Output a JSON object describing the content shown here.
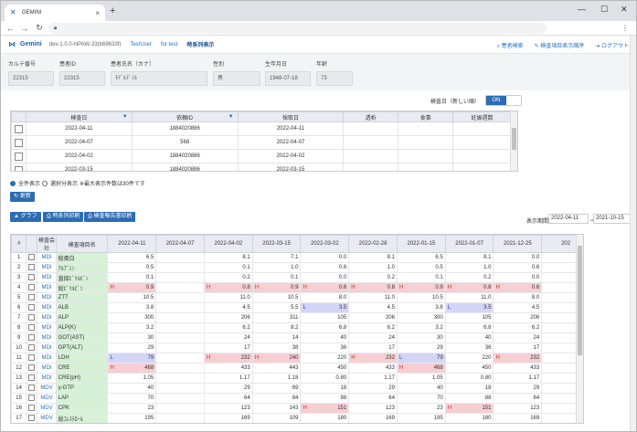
{
  "browser": {
    "tab_title": "GEMINI",
    "url": ""
  },
  "header": {
    "logo": "Gemini",
    "version": "dev-1.0.0-NPAW-33(b69633f)",
    "user": "TestUser",
    "org": "for test",
    "view": "時系列表示",
    "links": [
      "患者検索",
      "検査項目表示順序",
      "ログアウト"
    ]
  },
  "patient": {
    "fields": [
      {
        "label": "カルテ番号",
        "value": "22315"
      },
      {
        "label": "患者ID",
        "value": "22315"
      },
      {
        "label": "患者氏名（カナ）",
        "value": "ﾓﾃﾞﾙﾃﾞﾐﾙ"
      },
      {
        "label": "性別",
        "value": "男"
      },
      {
        "label": "生年月日",
        "value": "1948-07-18"
      },
      {
        "label": "年齢",
        "value": "73"
      }
    ]
  },
  "toggle": {
    "label": "検査日（新しい順）",
    "state": "ON"
  },
  "visits": {
    "headers": [
      "",
      "検査日",
      "依頼ID",
      "採取日",
      "透析",
      "食事",
      "妊娠週数"
    ],
    "rows": [
      [
        "2022-04-11",
        "1884020886",
        "2022-04-11",
        "",
        "",
        ""
      ],
      [
        "2022-04-07",
        "568",
        "2022-04-07",
        "",
        "",
        ""
      ],
      [
        "2022-04-02",
        "1884020886",
        "2022-04-02",
        "",
        "",
        ""
      ],
      [
        "2022-03-15",
        "1884020886",
        "2022-03-15",
        "",
        "",
        ""
      ]
    ]
  },
  "radios": {
    "all": "全件表示",
    "some": "選択分表示",
    "note": "※最大表示件数は30件です"
  },
  "buttons": {
    "refresh": "更新",
    "graph": "グラフ",
    "print_series": "時系列印刷",
    "print_report": "検査報告書印刷"
  },
  "period": {
    "label": "表示期間",
    "from": "2022-04-11",
    "sep": "〜",
    "to": "2021-10-15"
  },
  "results": {
    "headers": [
      "#",
      "",
      "検査会社",
      "検査項目名",
      "2022-04-11",
      "2022-04-07",
      "2022-04-02",
      "2022-03-15",
      "2022-03-02",
      "2022-02-28",
      "2022-01-15",
      "2022-01-07",
      "2021-12-25",
      "202"
    ],
    "rows": [
      {
        "n": "1",
        "fac": "MDI",
        "name": "総蛋白",
        "v": [
          [
            "",
            "6.5"
          ],
          [
            "",
            ""
          ],
          [
            "",
            "8.1"
          ],
          [
            "",
            "7.1"
          ],
          [
            "",
            "0.0"
          ],
          [
            "",
            "8.1"
          ],
          [
            "",
            "6.5"
          ],
          [
            "",
            "8.1"
          ],
          [
            "",
            "0.0"
          ]
        ]
      },
      {
        "n": "2",
        "fac": "MDI",
        "name": "ｱﾙﾌﾞﾐﾝ",
        "v": [
          [
            "",
            "0.5"
          ],
          [
            "",
            ""
          ],
          [
            "",
            "0.1"
          ],
          [
            "",
            "1.0"
          ],
          [
            "",
            "0.6"
          ],
          [
            "",
            "1.0"
          ],
          [
            "",
            "0.5"
          ],
          [
            "",
            "1.0"
          ],
          [
            "",
            "0.6"
          ]
        ]
      },
      {
        "n": "3",
        "fac": "MDI",
        "name": "直接ﾋﾞﾘﾙﾋﾞﾝ",
        "v": [
          [
            "",
            "0.1"
          ],
          [
            "",
            ""
          ],
          [
            "",
            "0.2"
          ],
          [
            "",
            "0.1"
          ],
          [
            "",
            "0.0"
          ],
          [
            "",
            "0.2"
          ],
          [
            "",
            "0.1"
          ],
          [
            "",
            "0.2"
          ],
          [
            "",
            "0.0"
          ]
        ]
      },
      {
        "n": "4",
        "fac": "MDI",
        "name": "総ﾋﾞﾘﾙﾋﾞﾝ",
        "v": [
          [
            "H",
            "0.9"
          ],
          [
            "",
            ""
          ],
          [
            "H",
            "0.8"
          ],
          [
            "H",
            "0.9"
          ],
          [
            "H",
            "0.6"
          ],
          [
            "H",
            "0.8"
          ],
          [
            "H",
            "0.9"
          ],
          [
            "H",
            "0.8"
          ],
          [
            "H",
            "0.6"
          ]
        ]
      },
      {
        "n": "5",
        "fac": "MDI",
        "name": "ZTT",
        "v": [
          [
            "",
            "10.5"
          ],
          [
            "",
            ""
          ],
          [
            "",
            "11.0"
          ],
          [
            "",
            "10.5"
          ],
          [
            "",
            "8.0"
          ],
          [
            "",
            "11.0"
          ],
          [
            "",
            "10.5"
          ],
          [
            "",
            "11.0"
          ],
          [
            "",
            "8.0"
          ]
        ]
      },
      {
        "n": "6",
        "fac": "MDI",
        "name": "ALB",
        "v": [
          [
            "",
            "3.8"
          ],
          [
            "",
            ""
          ],
          [
            "",
            "4.5"
          ],
          [
            "",
            "5.5"
          ],
          [
            "L",
            "3.5"
          ],
          [
            "",
            "4.5"
          ],
          [
            "",
            "3.8"
          ],
          [
            "L",
            "3.5"
          ],
          [
            "",
            "4.5"
          ]
        ]
      },
      {
        "n": "7",
        "fac": "MDI",
        "name": "ALP",
        "v": [
          [
            "",
            "300"
          ],
          [
            "",
            ""
          ],
          [
            "",
            "206"
          ],
          [
            "",
            "311"
          ],
          [
            "",
            "105"
          ],
          [
            "",
            "206"
          ],
          [
            "",
            "300"
          ],
          [
            "",
            "105"
          ],
          [
            "",
            "206"
          ]
        ]
      },
      {
        "n": "8",
        "fac": "MDI",
        "name": "ALP(K)",
        "v": [
          [
            "",
            "3.2"
          ],
          [
            "",
            ""
          ],
          [
            "",
            "6.2"
          ],
          [
            "",
            "8.2"
          ],
          [
            "",
            "6.8"
          ],
          [
            "",
            "6.2"
          ],
          [
            "",
            "3.2"
          ],
          [
            "",
            "6.8"
          ],
          [
            "",
            "6.2"
          ]
        ]
      },
      {
        "n": "9",
        "fac": "MDI",
        "name": "GOT(AST)",
        "v": [
          [
            "",
            "30"
          ],
          [
            "",
            ""
          ],
          [
            "",
            "24"
          ],
          [
            "",
            "14"
          ],
          [
            "",
            "40"
          ],
          [
            "",
            "24"
          ],
          [
            "",
            "30"
          ],
          [
            "",
            "40"
          ],
          [
            "",
            "24"
          ]
        ]
      },
      {
        "n": "10",
        "fac": "MDI",
        "name": "GPT(ALT)",
        "v": [
          [
            "",
            "29"
          ],
          [
            "",
            ""
          ],
          [
            "",
            "17"
          ],
          [
            "",
            "38"
          ],
          [
            "",
            "36"
          ],
          [
            "",
            "17"
          ],
          [
            "",
            "29"
          ],
          [
            "",
            "36"
          ],
          [
            "",
            "17"
          ]
        ]
      },
      {
        "n": "11",
        "fac": "MDI",
        "name": "LDH",
        "v": [
          [
            "L",
            "79"
          ],
          [
            "",
            ""
          ],
          [
            "H",
            "232"
          ],
          [
            "H",
            "240"
          ],
          [
            "",
            "220"
          ],
          [
            "H",
            "232"
          ],
          [
            "L",
            "79"
          ],
          [
            "",
            "220"
          ],
          [
            "H",
            "232"
          ]
        ]
      },
      {
        "n": "12",
        "fac": "MDI",
        "name": "CRE",
        "v": [
          [
            "H",
            "468"
          ],
          [
            "",
            ""
          ],
          [
            "",
            "433"
          ],
          [
            "",
            "443"
          ],
          [
            "",
            "450"
          ],
          [
            "",
            "433"
          ],
          [
            "H",
            "468"
          ],
          [
            "",
            "450"
          ],
          [
            "",
            "433"
          ]
        ]
      },
      {
        "n": "13",
        "fac": "MDI",
        "name": "CRE(pH)",
        "v": [
          [
            "",
            "1.05"
          ],
          [
            "",
            ""
          ],
          [
            "",
            "1.17"
          ],
          [
            "",
            "1.18"
          ],
          [
            "",
            "0.80"
          ],
          [
            "",
            "1.17"
          ],
          [
            "",
            "1.05"
          ],
          [
            "",
            "0.80"
          ],
          [
            "",
            "1.17"
          ]
        ]
      },
      {
        "n": "14",
        "fac": "MDV",
        "name": "γ-GTP",
        "v": [
          [
            "",
            "40"
          ],
          [
            "",
            ""
          ],
          [
            "",
            "29"
          ],
          [
            "",
            "69"
          ],
          [
            "",
            "18"
          ],
          [
            "",
            "29"
          ],
          [
            "",
            "40"
          ],
          [
            "",
            "18"
          ],
          [
            "",
            "29"
          ]
        ]
      },
      {
        "n": "15",
        "fac": "MDV",
        "name": "LAP",
        "v": [
          [
            "",
            "70"
          ],
          [
            "",
            ""
          ],
          [
            "",
            "64"
          ],
          [
            "",
            "84"
          ],
          [
            "",
            "88"
          ],
          [
            "",
            "64"
          ],
          [
            "",
            "70"
          ],
          [
            "",
            "88"
          ],
          [
            "",
            "64"
          ]
        ]
      },
      {
        "n": "16",
        "fac": "MDV",
        "name": "CPK",
        "v": [
          [
            "",
            "23"
          ],
          [
            "",
            ""
          ],
          [
            "",
            "123"
          ],
          [
            "",
            "143"
          ],
          [
            "H",
            "151"
          ],
          [
            "",
            "123"
          ],
          [
            "",
            "23"
          ],
          [
            "H",
            "151"
          ],
          [
            "",
            "123"
          ]
        ]
      },
      {
        "n": "17",
        "fac": "MDV",
        "name": "総ｺﾚｽﾃﾛｰﾙ",
        "v": [
          [
            "",
            "195"
          ],
          [
            "",
            ""
          ],
          [
            "",
            "169"
          ],
          [
            "",
            "109"
          ],
          [
            "",
            "180"
          ],
          [
            "",
            "169"
          ],
          [
            "",
            "195"
          ],
          [
            "",
            "180"
          ],
          [
            "",
            "169"
          ]
        ]
      }
    ]
  },
  "colors": {
    "accent": "#2d6cb4",
    "high_bg": "#f6cfd3",
    "low_bg": "#d3d5f7",
    "name_bg": "#d6f1d6"
  }
}
